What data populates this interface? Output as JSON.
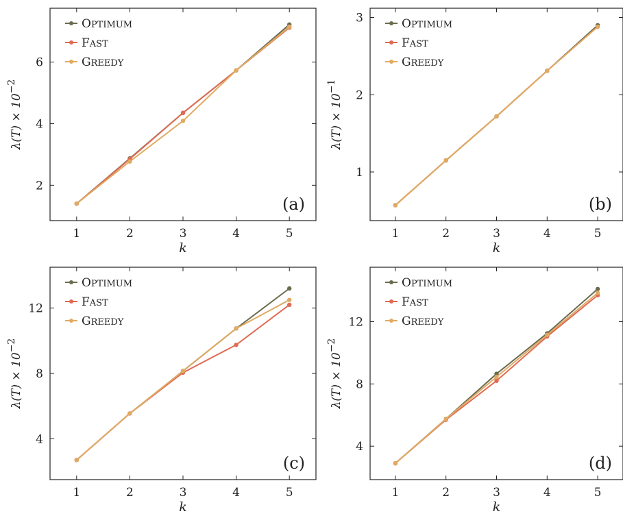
{
  "colors": {
    "optimum": "#6b6b50",
    "fast": "#e06a52",
    "greedy": "#e0aa62",
    "frame": "#222222"
  },
  "legend": [
    "Optimum",
    "Fast",
    "Greedy"
  ],
  "chart_data": [
    {
      "type": "line",
      "panel": "(a)",
      "xlabel": "k",
      "ylabel": "λ(T) × 10−2",
      "x": [
        1,
        2,
        3,
        4,
        5
      ],
      "xticks": [
        1,
        2,
        3,
        4,
        5
      ],
      "yticks": [
        2,
        4,
        6
      ],
      "xlim": [
        0.5,
        5.5
      ],
      "ylim": [
        0.85,
        7.75
      ],
      "series": [
        {
          "name": "Optimum",
          "values": [
            1.4,
            2.87,
            4.35,
            5.73,
            7.22
          ]
        },
        {
          "name": "Fast",
          "values": [
            1.4,
            2.85,
            4.35,
            5.73,
            7.12
          ]
        },
        {
          "name": "Greedy",
          "values": [
            1.4,
            2.77,
            4.09,
            5.73,
            7.15
          ]
        }
      ]
    },
    {
      "type": "line",
      "panel": "(b)",
      "xlabel": "k",
      "ylabel": "λ(T) × 10−1",
      "x": [
        1,
        2,
        3,
        4,
        5
      ],
      "xticks": [
        1,
        2,
        3,
        4,
        5
      ],
      "yticks": [
        1,
        2,
        3
      ],
      "xlim": [
        0.5,
        5.5
      ],
      "ylim": [
        0.37,
        3.12
      ],
      "series": [
        {
          "name": "Optimum",
          "values": [
            0.57,
            1.15,
            1.72,
            2.31,
            2.9
          ]
        },
        {
          "name": "Fast",
          "values": [
            0.57,
            1.15,
            1.72,
            2.31,
            2.88
          ]
        },
        {
          "name": "Greedy",
          "values": [
            0.57,
            1.15,
            1.72,
            2.31,
            2.88
          ]
        }
      ]
    },
    {
      "type": "line",
      "panel": "(c)",
      "xlabel": "k",
      "ylabel": "λ(T) × 10−2",
      "x": [
        1,
        2,
        3,
        4,
        5
      ],
      "xticks": [
        1,
        2,
        3,
        4,
        5
      ],
      "yticks": [
        4,
        8,
        12
      ],
      "xlim": [
        0.5,
        5.5
      ],
      "ylim": [
        1.5,
        14.5
      ],
      "series": [
        {
          "name": "Optimum",
          "values": [
            2.7,
            5.55,
            8.15,
            10.75,
            13.2
          ]
        },
        {
          "name": "Fast",
          "values": [
            2.7,
            5.55,
            8.05,
            9.75,
            12.2
          ]
        },
        {
          "name": "Greedy",
          "values": [
            2.7,
            5.55,
            8.15,
            10.75,
            12.5
          ]
        }
      ]
    },
    {
      "type": "line",
      "panel": "(d)",
      "xlabel": "k",
      "ylabel": "λ(T) × 10−2",
      "x": [
        1,
        2,
        3,
        4,
        5
      ],
      "xticks": [
        1,
        2,
        3,
        4,
        5
      ],
      "yticks": [
        4,
        8,
        12
      ],
      "xlim": [
        0.5,
        5.5
      ],
      "ylim": [
        1.85,
        15.5
      ],
      "series": [
        {
          "name": "Optimum",
          "values": [
            2.9,
            5.75,
            8.65,
            11.25,
            14.1
          ]
        },
        {
          "name": "Fast",
          "values": [
            2.9,
            5.7,
            8.2,
            11.05,
            13.7
          ]
        },
        {
          "name": "Greedy",
          "values": [
            2.9,
            5.75,
            8.45,
            11.15,
            13.85
          ]
        }
      ]
    }
  ]
}
